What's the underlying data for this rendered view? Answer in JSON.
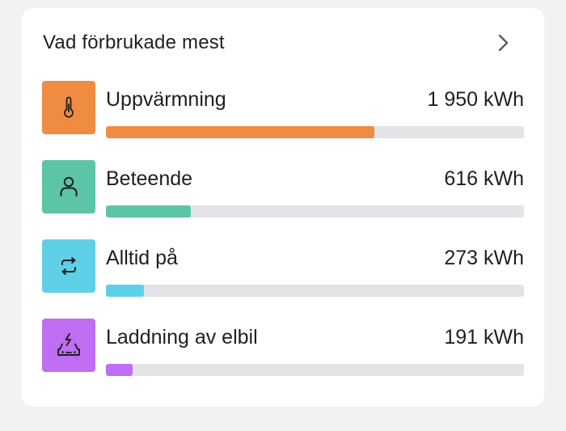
{
  "card": {
    "title": "Vad förbrukade mest"
  },
  "items": [
    {
      "label": "Uppvärmning",
      "value": "1 950 kWh",
      "fraction": 0.643,
      "color": "#f08c41",
      "icon": "thermometer-icon"
    },
    {
      "label": "Beteende",
      "value": "616 kWh",
      "fraction": 0.203,
      "color": "#5cc4a7",
      "icon": "person-icon"
    },
    {
      "label": "Alltid på",
      "value": "273 kWh",
      "fraction": 0.09,
      "color": "#5fcfe6",
      "icon": "repeat-icon"
    },
    {
      "label": "Laddning av elbil",
      "value": "191 kWh",
      "fraction": 0.063,
      "color": "#bf6df2",
      "icon": "ev-charging-car-icon"
    }
  ],
  "colors": {
    "track": "#e3e3e8",
    "background": "#f2f2f5",
    "card": "#ffffff"
  }
}
